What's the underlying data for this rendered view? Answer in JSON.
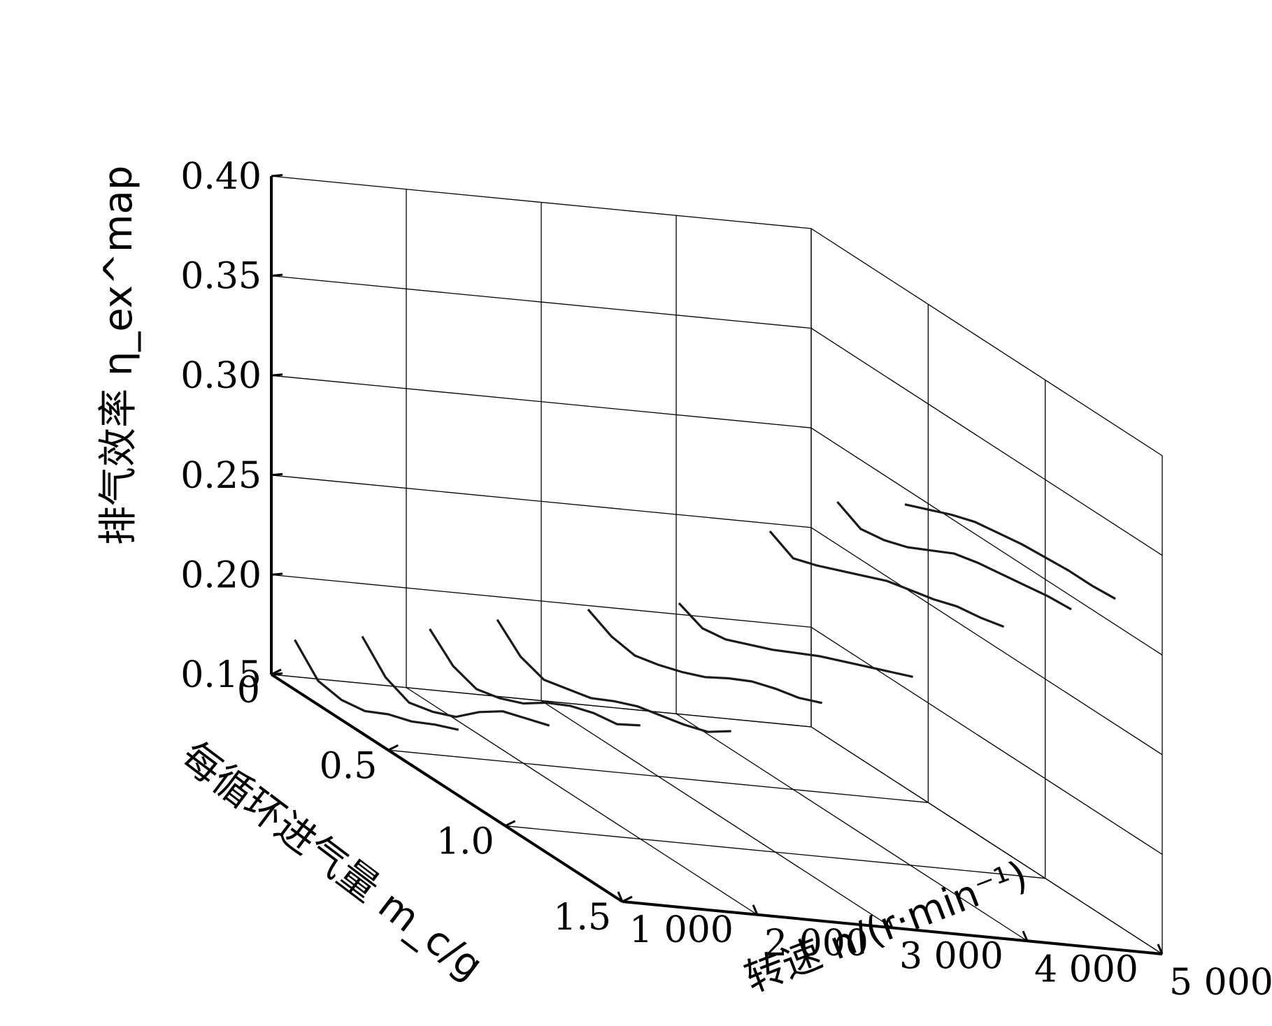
{
  "chart_data": {
    "type": "line",
    "view": "3d",
    "xlabel": "转速 n/(r·min⁻¹)",
    "ylabel": "每循环进气量 m_c/g",
    "zlabel": "排气效率 η_ex^map",
    "x_ticks": [
      "1 000",
      "2 000",
      "3 000",
      "4 000",
      "5 000"
    ],
    "y_ticks": [
      "0",
      "0.5",
      "1.0",
      "1.5"
    ],
    "z_ticks": [
      "0.15",
      "0.20",
      "0.25",
      "0.30",
      "0.35",
      "0.40"
    ],
    "xlim": [
      1000,
      5000
    ],
    "ylim": [
      0,
      1.5
    ],
    "zlim": [
      0.15,
      0.4
    ],
    "grid": true,
    "series": [
      {
        "speed": 1000,
        "mc": [
          0.1,
          0.2,
          0.3,
          0.4,
          0.5,
          0.6,
          0.7,
          0.8
        ],
        "eta": [
          0.175,
          0.162,
          0.16,
          0.162,
          0.168,
          0.172,
          0.178,
          0.183
        ]
      },
      {
        "speed": 1500,
        "mc": [
          0.1,
          0.2,
          0.3,
          0.4,
          0.5,
          0.6,
          0.7,
          0.8,
          0.9
        ],
        "eta": [
          0.18,
          0.167,
          0.162,
          0.165,
          0.17,
          0.18,
          0.188,
          0.192,
          0.196
        ]
      },
      {
        "speed": 2000,
        "mc": [
          0.1,
          0.2,
          0.3,
          0.4,
          0.5,
          0.6,
          0.7,
          0.8,
          0.9,
          1.0
        ],
        "eta": [
          0.187,
          0.176,
          0.172,
          0.175,
          0.18,
          0.188,
          0.194,
          0.198,
          0.2,
          0.207
        ]
      },
      {
        "speed": 2500,
        "mc": [
          0.1,
          0.2,
          0.3,
          0.4,
          0.5,
          0.6,
          0.7,
          0.8,
          0.9,
          1.0,
          1.1
        ],
        "eta": [
          0.195,
          0.184,
          0.18,
          0.183,
          0.186,
          0.192,
          0.197,
          0.2,
          0.203,
          0.207,
          0.215
        ]
      },
      {
        "speed": 3000,
        "mc": [
          0.2,
          0.3,
          0.4,
          0.5,
          0.6,
          0.7,
          0.8,
          0.9,
          1.0,
          1.1,
          1.2
        ],
        "eta": [
          0.211,
          0.205,
          0.203,
          0.206,
          0.21,
          0.215,
          0.222,
          0.228,
          0.232,
          0.235,
          0.24
        ]
      },
      {
        "speed": 3500,
        "mc": [
          0.3,
          0.4,
          0.5,
          0.6,
          0.7,
          0.8,
          0.9,
          1.0,
          1.1,
          1.2,
          1.3
        ],
        "eta": [
          0.225,
          0.22,
          0.222,
          0.227,
          0.232,
          0.238,
          0.244,
          0.249,
          0.254,
          0.259,
          0.264
        ]
      },
      {
        "speed": 4000,
        "mc": [
          0.4,
          0.5,
          0.6,
          0.7,
          0.8,
          0.9,
          1.0,
          1.1,
          1.2,
          1.3,
          1.4
        ],
        "eta": [
          0.272,
          0.266,
          0.27,
          0.275,
          0.28,
          0.285,
          0.288,
          0.291,
          0.295,
          0.297,
          0.3
        ]
      },
      {
        "speed": 4500,
        "mc": [
          0.4,
          0.5,
          0.6,
          0.7,
          0.8,
          0.9,
          1.0,
          1.1,
          1.2,
          1.3,
          1.4
        ],
        "eta": [
          0.29,
          0.284,
          0.286,
          0.29,
          0.296,
          0.302,
          0.305,
          0.307,
          0.309,
          0.311,
          0.312
        ]
      },
      {
        "speed": 5000,
        "mc": [
          0.4,
          0.5,
          0.6,
          0.7,
          0.8,
          0.9,
          1.0,
          1.1,
          1.2,
          1.3
        ],
        "eta": [
          0.292,
          0.297,
          0.302,
          0.306,
          0.308,
          0.31,
          0.311,
          0.312,
          0.312,
          0.313
        ]
      }
    ]
  }
}
